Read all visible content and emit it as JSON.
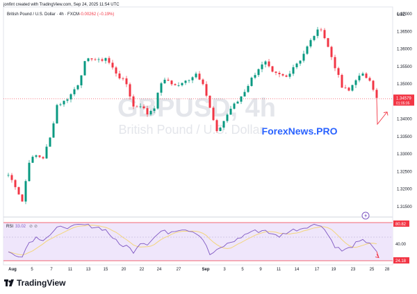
{
  "header": {
    "creator_line": "jonfint created with TradingView.com, Sep 24, 2025 11:54 UTC",
    "symbol_line": "British Pound / U.S. Dollar · 4h · FXCM",
    "change_text": "−0.00262 (−0.19%)",
    "change_color": "#f23645"
  },
  "watermark": {
    "symbol": "GBPUSD, 4h",
    "description": "British Pound / U.S. Dollar"
  },
  "overlay": {
    "text": "ForexNews.PRO",
    "color": "#2962ff"
  },
  "price_axis": {
    "currency": "USD",
    "ticks": [
      "1.37000",
      "1.36500",
      "1.36000",
      "1.35500",
      "1.35000",
      "1.34500",
      "1.34000",
      "1.33500",
      "1.33000",
      "1.32500",
      "1.32000",
      "1.31500"
    ],
    "last_price": "1.34579",
    "countdown": "01:05:05",
    "last_price_color": "#f23645"
  },
  "rsi_pane": {
    "label": "RSI",
    "value": "33.02",
    "upper_badge": "80.82",
    "mid_level": "40.00",
    "lower_badge": "24.18"
  },
  "time_axis": {
    "ticks": [
      "Aug",
      "5",
      "7",
      "11",
      "13",
      "15",
      "20",
      "22",
      "24",
      "27",
      "Sep",
      "3",
      "5",
      "9",
      "11",
      "14",
      "17",
      "19",
      "23",
      "25",
      "28"
    ]
  },
  "footer": {
    "brand": "TradingView",
    "icon": "tradingview-logo-icon"
  },
  "colors": {
    "up": "#089981",
    "down": "#f23645",
    "rsi_line": "#7e57c2",
    "rsi_band": "#e9ddf9",
    "rsi_ma": "#f3d57b",
    "arrow": "#f23645"
  },
  "chart_data": {
    "type": "candlestick",
    "title": "GBPUSD, 4h",
    "ylim": [
      1.312,
      1.372
    ],
    "price_path": [
      [
        1,
        1.324
      ],
      [
        3,
        1.321
      ],
      [
        5,
        1.3165
      ],
      [
        7,
        1.328
      ],
      [
        9,
        1.3295
      ],
      [
        11,
        1.329
      ],
      [
        13,
        1.3345
      ],
      [
        15,
        1.344
      ],
      [
        17,
        1.345
      ],
      [
        19,
        1.347
      ],
      [
        21,
        1.35
      ],
      [
        23,
        1.356
      ],
      [
        25,
        1.3575
      ],
      [
        27,
        1.3565
      ],
      [
        29,
        1.3575
      ],
      [
        31,
        1.3545
      ],
      [
        33,
        1.352
      ],
      [
        35,
        1.35
      ],
      [
        37,
        1.3435
      ],
      [
        39,
        1.344
      ],
      [
        41,
        1.3415
      ],
      [
        43,
        1.3435
      ],
      [
        45,
        1.3505
      ],
      [
        47,
        1.351
      ],
      [
        49,
        1.3495
      ],
      [
        51,
        1.35
      ],
      [
        53,
        1.3515
      ],
      [
        55,
        1.353
      ],
      [
        57,
        1.3505
      ],
      [
        59,
        1.343
      ],
      [
        61,
        1.336
      ],
      [
        63,
        1.3395
      ],
      [
        65,
        1.343
      ],
      [
        67,
        1.345
      ],
      [
        69,
        1.348
      ],
      [
        71,
        1.3515
      ],
      [
        73,
        1.3545
      ],
      [
        75,
        1.356
      ],
      [
        77,
        1.353
      ],
      [
        79,
        1.3525
      ],
      [
        81,
        1.352
      ],
      [
        83,
        1.355
      ],
      [
        85,
        1.357
      ],
      [
        87,
        1.3605
      ],
      [
        89,
        1.364
      ],
      [
        91,
        1.366
      ],
      [
        93,
        1.3605
      ],
      [
        95,
        1.355
      ],
      [
        97,
        1.349
      ],
      [
        99,
        1.348
      ],
      [
        101,
        1.3515
      ],
      [
        103,
        1.3525
      ],
      [
        105,
        1.3515
      ],
      [
        107,
        1.346
      ]
    ],
    "projection": [
      [
        1.3458,
        1.3385
      ],
      [
        1.3385,
        1.342
      ]
    ],
    "rsi_path": [
      [
        1,
        34
      ],
      [
        3,
        28
      ],
      [
        5,
        29
      ],
      [
        7,
        50
      ],
      [
        9,
        58
      ],
      [
        11,
        55
      ],
      [
        13,
        62
      ],
      [
        15,
        72
      ],
      [
        17,
        76
      ],
      [
        19,
        74
      ],
      [
        21,
        77
      ],
      [
        23,
        78
      ],
      [
        25,
        76
      ],
      [
        27,
        74
      ],
      [
        29,
        70
      ],
      [
        31,
        58
      ],
      [
        33,
        46
      ],
      [
        35,
        44
      ],
      [
        37,
        35
      ],
      [
        39,
        50
      ],
      [
        41,
        48
      ],
      [
        43,
        58
      ],
      [
        45,
        68
      ],
      [
        47,
        66
      ],
      [
        49,
        70
      ],
      [
        51,
        72
      ],
      [
        53,
        70
      ],
      [
        55,
        66
      ],
      [
        57,
        55
      ],
      [
        59,
        30
      ],
      [
        61,
        36
      ],
      [
        63,
        44
      ],
      [
        65,
        50
      ],
      [
        67,
        55
      ],
      [
        69,
        62
      ],
      [
        71,
        68
      ],
      [
        73,
        68
      ],
      [
        75,
        70
      ],
      [
        77,
        62
      ],
      [
        79,
        60
      ],
      [
        81,
        66
      ],
      [
        83,
        70
      ],
      [
        85,
        72
      ],
      [
        87,
        76
      ],
      [
        89,
        78
      ],
      [
        91,
        79
      ],
      [
        93,
        62
      ],
      [
        95,
        44
      ],
      [
        97,
        36
      ],
      [
        99,
        40
      ],
      [
        101,
        48
      ],
      [
        103,
        52
      ],
      [
        105,
        50
      ],
      [
        107,
        35
      ]
    ],
    "rsi_projection": [
      [
        35,
        25
      ]
    ]
  }
}
